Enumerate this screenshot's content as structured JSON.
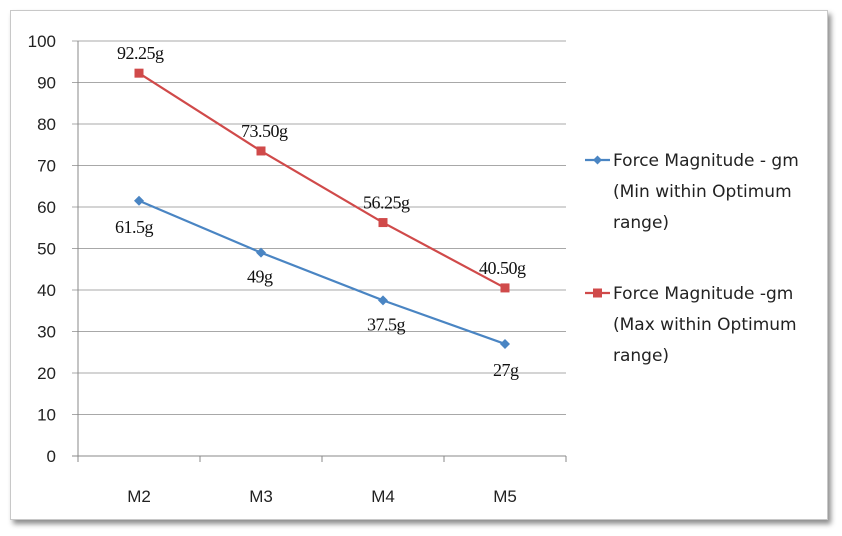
{
  "chart_data": {
    "type": "line",
    "title": "",
    "xlabel": "",
    "ylabel": "",
    "categories": [
      "M2",
      "M3",
      "M4",
      "M5"
    ],
    "ylim": [
      0,
      100
    ],
    "yticks": [
      0,
      10,
      20,
      30,
      40,
      50,
      60,
      70,
      80,
      90,
      100
    ],
    "grid": true,
    "legend_position": "right",
    "series": [
      {
        "name": "Force Magnitude - gm (Min within Optimum range)",
        "legend_lines": [
          "Force Magnitude - gm",
          "(Min within Optimum",
          "range)"
        ],
        "values": [
          61.5,
          49,
          37.5,
          27
        ],
        "labels": [
          "61.5g",
          "49g",
          "37.5g",
          "27g"
        ],
        "color": "#4a85c3",
        "marker": "diamond"
      },
      {
        "name": "Force Magnitude -gm (Max within Optimum range)",
        "legend_lines": [
          "Force Magnitude -gm",
          "(Max within Optimum",
          "range)"
        ],
        "values": [
          92.25,
          73.5,
          56.25,
          40.5
        ],
        "labels": [
          "92.25g",
          "73.50g",
          "56.25g",
          "40.50g"
        ],
        "color": "#d04a4a",
        "marker": "square"
      }
    ]
  }
}
